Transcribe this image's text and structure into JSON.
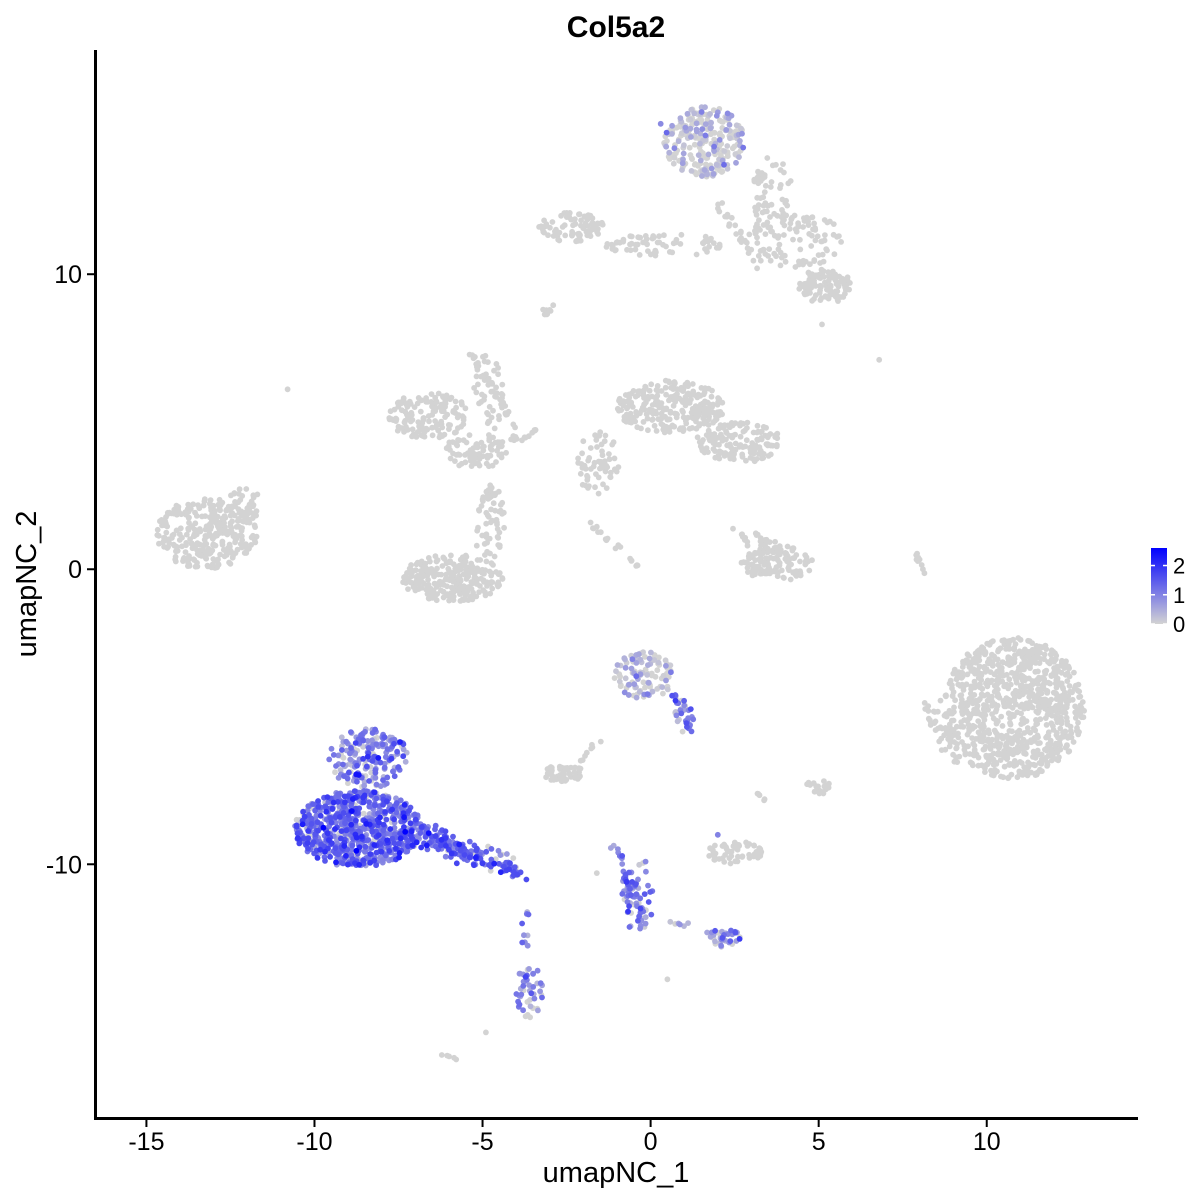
{
  "chart_data": {
    "type": "scatter",
    "title": "Col5a2",
    "xlabel": "umapNC_1",
    "ylabel": "umapNC_2",
    "xlim": [
      -16.5,
      14.5
    ],
    "ylim": [
      -18.6,
      17.6
    ],
    "x_ticks": [
      -15,
      -10,
      -5,
      0,
      5,
      10
    ],
    "x_tick_labels": [
      "-15",
      "-10",
      "-5",
      "0",
      "5",
      "10"
    ],
    "y_ticks": [
      10,
      0,
      -10
    ],
    "y_tick_labels": [
      "10",
      "0",
      "-10"
    ],
    "grid": false,
    "legend": {
      "position": "right",
      "type": "colorbar",
      "title": "",
      "breaks": [
        2,
        1,
        0
      ],
      "break_labels": [
        "2",
        "1",
        "0"
      ],
      "range": [
        0,
        2.6
      ]
    },
    "colors": {
      "low": "#d3d3d3",
      "high": "#0000ff",
      "point_size_note": "small dots"
    },
    "clusters": [
      {
        "id": "c1",
        "cx": -13.2,
        "cy": 1.2,
        "rx": 1.5,
        "ry": 1.2,
        "n": 300,
        "expr": 0.0,
        "seed": 1
      },
      {
        "id": "c2",
        "cx": -12.1,
        "cy": 2.2,
        "rx": 0.5,
        "ry": 0.6,
        "n": 25,
        "expr": 0.0,
        "seed": 2
      },
      {
        "id": "c3",
        "cx": -6.6,
        "cy": 5.2,
        "rx": 1.2,
        "ry": 0.8,
        "n": 140,
        "expr": 0.0,
        "seed": 3
      },
      {
        "id": "c4",
        "cx": -5.2,
        "cy": 4.0,
        "rx": 1.0,
        "ry": 0.6,
        "n": 80,
        "expr": 0.0,
        "seed": 4
      },
      {
        "id": "c5",
        "cx": -4.8,
        "cy": 6.0,
        "rx": 0.5,
        "ry": 1.3,
        "n": 40,
        "expr": 0.0,
        "seed": 5
      },
      {
        "id": "c6",
        "cx": -5.9,
        "cy": -0.3,
        "rx": 1.5,
        "ry": 0.8,
        "n": 260,
        "expr": 0.0,
        "seed": 6
      },
      {
        "id": "c7",
        "cx": -4.8,
        "cy": 1.6,
        "rx": 0.5,
        "ry": 1.3,
        "n": 60,
        "expr": 0.0,
        "seed": 7
      },
      {
        "id": "c8",
        "cx": 0.6,
        "cy": 5.5,
        "rx": 1.6,
        "ry": 0.9,
        "n": 260,
        "expr": 0.0,
        "seed": 8
      },
      {
        "id": "c9",
        "cx": 2.6,
        "cy": 4.3,
        "rx": 1.3,
        "ry": 0.7,
        "n": 140,
        "expr": 0.0,
        "seed": 9
      },
      {
        "id": "c10",
        "cx": -1.6,
        "cy": 3.6,
        "rx": 0.7,
        "ry": 1.1,
        "n": 60,
        "expr": 0.0,
        "seed": 10
      },
      {
        "id": "c11",
        "cx": 1.6,
        "cy": 14.5,
        "rx": 1.2,
        "ry": 1.2,
        "n": 260,
        "expr": 0.02,
        "seed": 11
      },
      {
        "id": "c12",
        "cx": -2.4,
        "cy": 11.6,
        "rx": 1.0,
        "ry": 0.5,
        "n": 90,
        "expr": 0.0,
        "seed": 12
      },
      {
        "id": "c13",
        "cx": 0.4,
        "cy": 11.0,
        "rx": 1.8,
        "ry": 0.4,
        "n": 70,
        "expr": 0.0,
        "seed": 13
      },
      {
        "id": "c14",
        "cx": 4.3,
        "cy": 11.2,
        "rx": 1.4,
        "ry": 1.0,
        "n": 110,
        "expr": 0.0,
        "seed": 14
      },
      {
        "id": "c15",
        "cx": 5.2,
        "cy": 9.6,
        "rx": 0.8,
        "ry": 0.6,
        "n": 100,
        "expr": 0.0,
        "seed": 15
      },
      {
        "id": "c16",
        "cx": 3.6,
        "cy": 12.8,
        "rx": 0.6,
        "ry": 1.2,
        "n": 50,
        "expr": 0.0,
        "seed": 16
      },
      {
        "id": "c17",
        "cx": 3.8,
        "cy": 0.2,
        "rx": 1.1,
        "ry": 0.6,
        "n": 120,
        "expr": 0.0,
        "seed": 17
      },
      {
        "id": "c18",
        "cx": 10.8,
        "cy": -4.7,
        "rx": 2.1,
        "ry": 2.4,
        "n": 900,
        "expr": 0.0,
        "seed": 18
      },
      {
        "id": "c19",
        "cx": -0.2,
        "cy": -3.6,
        "rx": 0.9,
        "ry": 0.8,
        "n": 110,
        "expr": 0.12,
        "seed": 19
      },
      {
        "id": "c20",
        "cx": 1.0,
        "cy": -5.0,
        "rx": 0.3,
        "ry": 0.6,
        "n": 20,
        "expr": 0.9,
        "seed": 20
      },
      {
        "id": "c21",
        "cx": -2.6,
        "cy": -6.9,
        "rx": 0.6,
        "ry": 0.3,
        "n": 50,
        "expr": 0.0,
        "seed": 21
      },
      {
        "id": "c22",
        "cx": 2.5,
        "cy": -9.6,
        "rx": 0.8,
        "ry": 0.4,
        "n": 60,
        "expr": 0.0,
        "seed": 22
      },
      {
        "id": "c23",
        "cx": 5.0,
        "cy": -7.4,
        "rx": 0.4,
        "ry": 0.3,
        "n": 15,
        "expr": 0.0,
        "seed": 23
      },
      {
        "id": "c24",
        "cx": -8.7,
        "cy": -8.8,
        "rx": 1.9,
        "ry": 1.3,
        "n": 750,
        "expr": 1.25,
        "seed": 24
      },
      {
        "id": "c25",
        "cx": -8.4,
        "cy": -6.4,
        "rx": 1.2,
        "ry": 1.0,
        "n": 200,
        "expr": 0.95,
        "seed": 25
      },
      {
        "id": "c26",
        "cx": -3.6,
        "cy": -14.3,
        "rx": 0.4,
        "ry": 0.9,
        "n": 45,
        "expr": 0.8,
        "seed": 26
      },
      {
        "id": "c27",
        "cx": -0.4,
        "cy": -11.0,
        "rx": 0.5,
        "ry": 1.3,
        "n": 45,
        "expr": 0.95,
        "seed": 27
      },
      {
        "id": "c28",
        "cx": 2.2,
        "cy": -12.5,
        "rx": 0.5,
        "ry": 0.3,
        "n": 30,
        "expr": 0.8,
        "seed": 28
      }
    ],
    "trails": [
      {
        "id": "t1",
        "x0": -6.8,
        "y0": -9.0,
        "x1": -3.9,
        "y1": -10.3,
        "n": 160,
        "width": 0.35,
        "expr": 1.35,
        "seed": 31
      },
      {
        "id": "t2",
        "x0": -3.9,
        "y0": -11.9,
        "x1": -3.7,
        "y1": -12.8,
        "n": 6,
        "width": 0.1,
        "expr": 1.0,
        "seed": 32
      },
      {
        "id": "t3",
        "x0": -1.1,
        "y0": -9.2,
        "x1": -0.2,
        "y1": -12.0,
        "n": 45,
        "width": 0.15,
        "expr": 1.1,
        "seed": 33
      },
      {
        "id": "t4",
        "x0": 0.2,
        "y0": -11.8,
        "x1": 2.3,
        "y1": -12.6,
        "n": 14,
        "width": 0.15,
        "expr": 0.25,
        "seed": 34
      },
      {
        "id": "t5",
        "x0": 0.7,
        "y0": -4.2,
        "x1": 1.2,
        "y1": -5.6,
        "n": 15,
        "width": 0.1,
        "expr": 1.2,
        "seed": 35
      },
      {
        "id": "t6",
        "x0": -1.6,
        "y0": -5.8,
        "x1": -2.2,
        "y1": -6.6,
        "n": 8,
        "width": 0.08,
        "expr": 0.0,
        "seed": 36
      },
      {
        "id": "t7",
        "x0": -5.4,
        "y0": 7.4,
        "x1": -4.0,
        "y1": 4.7,
        "n": 30,
        "width": 0.1,
        "expr": 0.0,
        "seed": 37
      },
      {
        "id": "t8",
        "x0": -4.2,
        "y0": 4.3,
        "x1": -3.2,
        "y1": 4.8,
        "n": 15,
        "width": 0.15,
        "expr": 0.0,
        "seed": 38
      },
      {
        "id": "t9",
        "x0": -1.8,
        "y0": 1.6,
        "x1": -1.0,
        "y1": 0.7,
        "n": 12,
        "width": 0.12,
        "expr": 0.0,
        "seed": 39
      },
      {
        "id": "t10",
        "x0": -0.7,
        "y0": 0.5,
        "x1": -0.2,
        "y1": -0.1,
        "n": 6,
        "width": 0.05,
        "expr": 0.0,
        "seed": 40
      },
      {
        "id": "t11",
        "x0": -3.2,
        "y0": 8.6,
        "x1": -2.8,
        "y1": 9.0,
        "n": 8,
        "width": 0.08,
        "expr": 0.0,
        "seed": 41
      },
      {
        "id": "t12",
        "x0": 2.5,
        "y0": 1.4,
        "x1": 3.0,
        "y1": 0.7,
        "n": 8,
        "width": 0.1,
        "expr": 0.0,
        "seed": 42
      },
      {
        "id": "t13",
        "x0": 3.0,
        "y0": 1.2,
        "x1": 4.0,
        "y1": 0.3,
        "n": 25,
        "width": 0.2,
        "expr": 0.0,
        "seed": 43
      },
      {
        "id": "t14",
        "x0": 7.8,
        "y0": 0.8,
        "x1": 8.2,
        "y1": -0.3,
        "n": 12,
        "width": 0.05,
        "expr": 0.0,
        "seed": 44
      },
      {
        "id": "t15",
        "x0": 8.2,
        "y0": -4.5,
        "x1": 9.2,
        "y1": -6.5,
        "n": 40,
        "width": 0.3,
        "expr": 0.0,
        "seed": 45
      },
      {
        "id": "t16",
        "x0": 4.8,
        "y0": -7.2,
        "x1": 5.2,
        "y1": -7.7,
        "n": 6,
        "width": 0.08,
        "expr": 0.0,
        "seed": 46
      },
      {
        "id": "t17",
        "x0": 1.9,
        "y0": 12.5,
        "x1": 3.2,
        "y1": 10.4,
        "n": 25,
        "width": 0.2,
        "expr": 0.0,
        "seed": 47
      },
      {
        "id": "t18",
        "x0": -12.0,
        "y0": 2.0,
        "x1": -11.7,
        "y1": 2.6,
        "n": 8,
        "width": 0.1,
        "expr": 0.0,
        "seed": 48
      },
      {
        "id": "t19",
        "x0": -6.3,
        "y0": -16.4,
        "x1": -5.8,
        "y1": -16.6,
        "n": 5,
        "width": 0.05,
        "expr": 0.0,
        "seed": 49
      },
      {
        "id": "t20",
        "x0": 3.2,
        "y0": -7.6,
        "x1": 3.5,
        "y1": -7.9,
        "n": 5,
        "width": 0.05,
        "expr": 0.0,
        "seed": 50
      },
      {
        "id": "t21",
        "x0": -3.7,
        "y0": -11.6,
        "x1": -3.6,
        "y1": -12.0,
        "n": 3,
        "width": 0.05,
        "expr": 1.0,
        "seed": 51
      }
    ],
    "singles": [
      {
        "x": -10.8,
        "y": 6.1,
        "v": 0.0
      },
      {
        "x": 6.8,
        "y": 7.1,
        "v": 0.0
      },
      {
        "x": 5.1,
        "y": 8.3,
        "v": 0.0
      },
      {
        "x": -3.2,
        "y": 8.8,
        "v": 0.0
      },
      {
        "x": 0.5,
        "y": -13.9,
        "v": 0.0
      },
      {
        "x": -4.9,
        "y": -15.7,
        "v": 0.0
      },
      {
        "x": -7.3,
        "y": -8.9,
        "v": 2.6
      },
      {
        "x": 0.3,
        "y": 15.1,
        "v": 0.9
      },
      {
        "x": -1.6,
        "y": -10.3,
        "v": 0.0
      },
      {
        "x": 2.0,
        "y": -9.0,
        "v": 1.0
      }
    ]
  }
}
